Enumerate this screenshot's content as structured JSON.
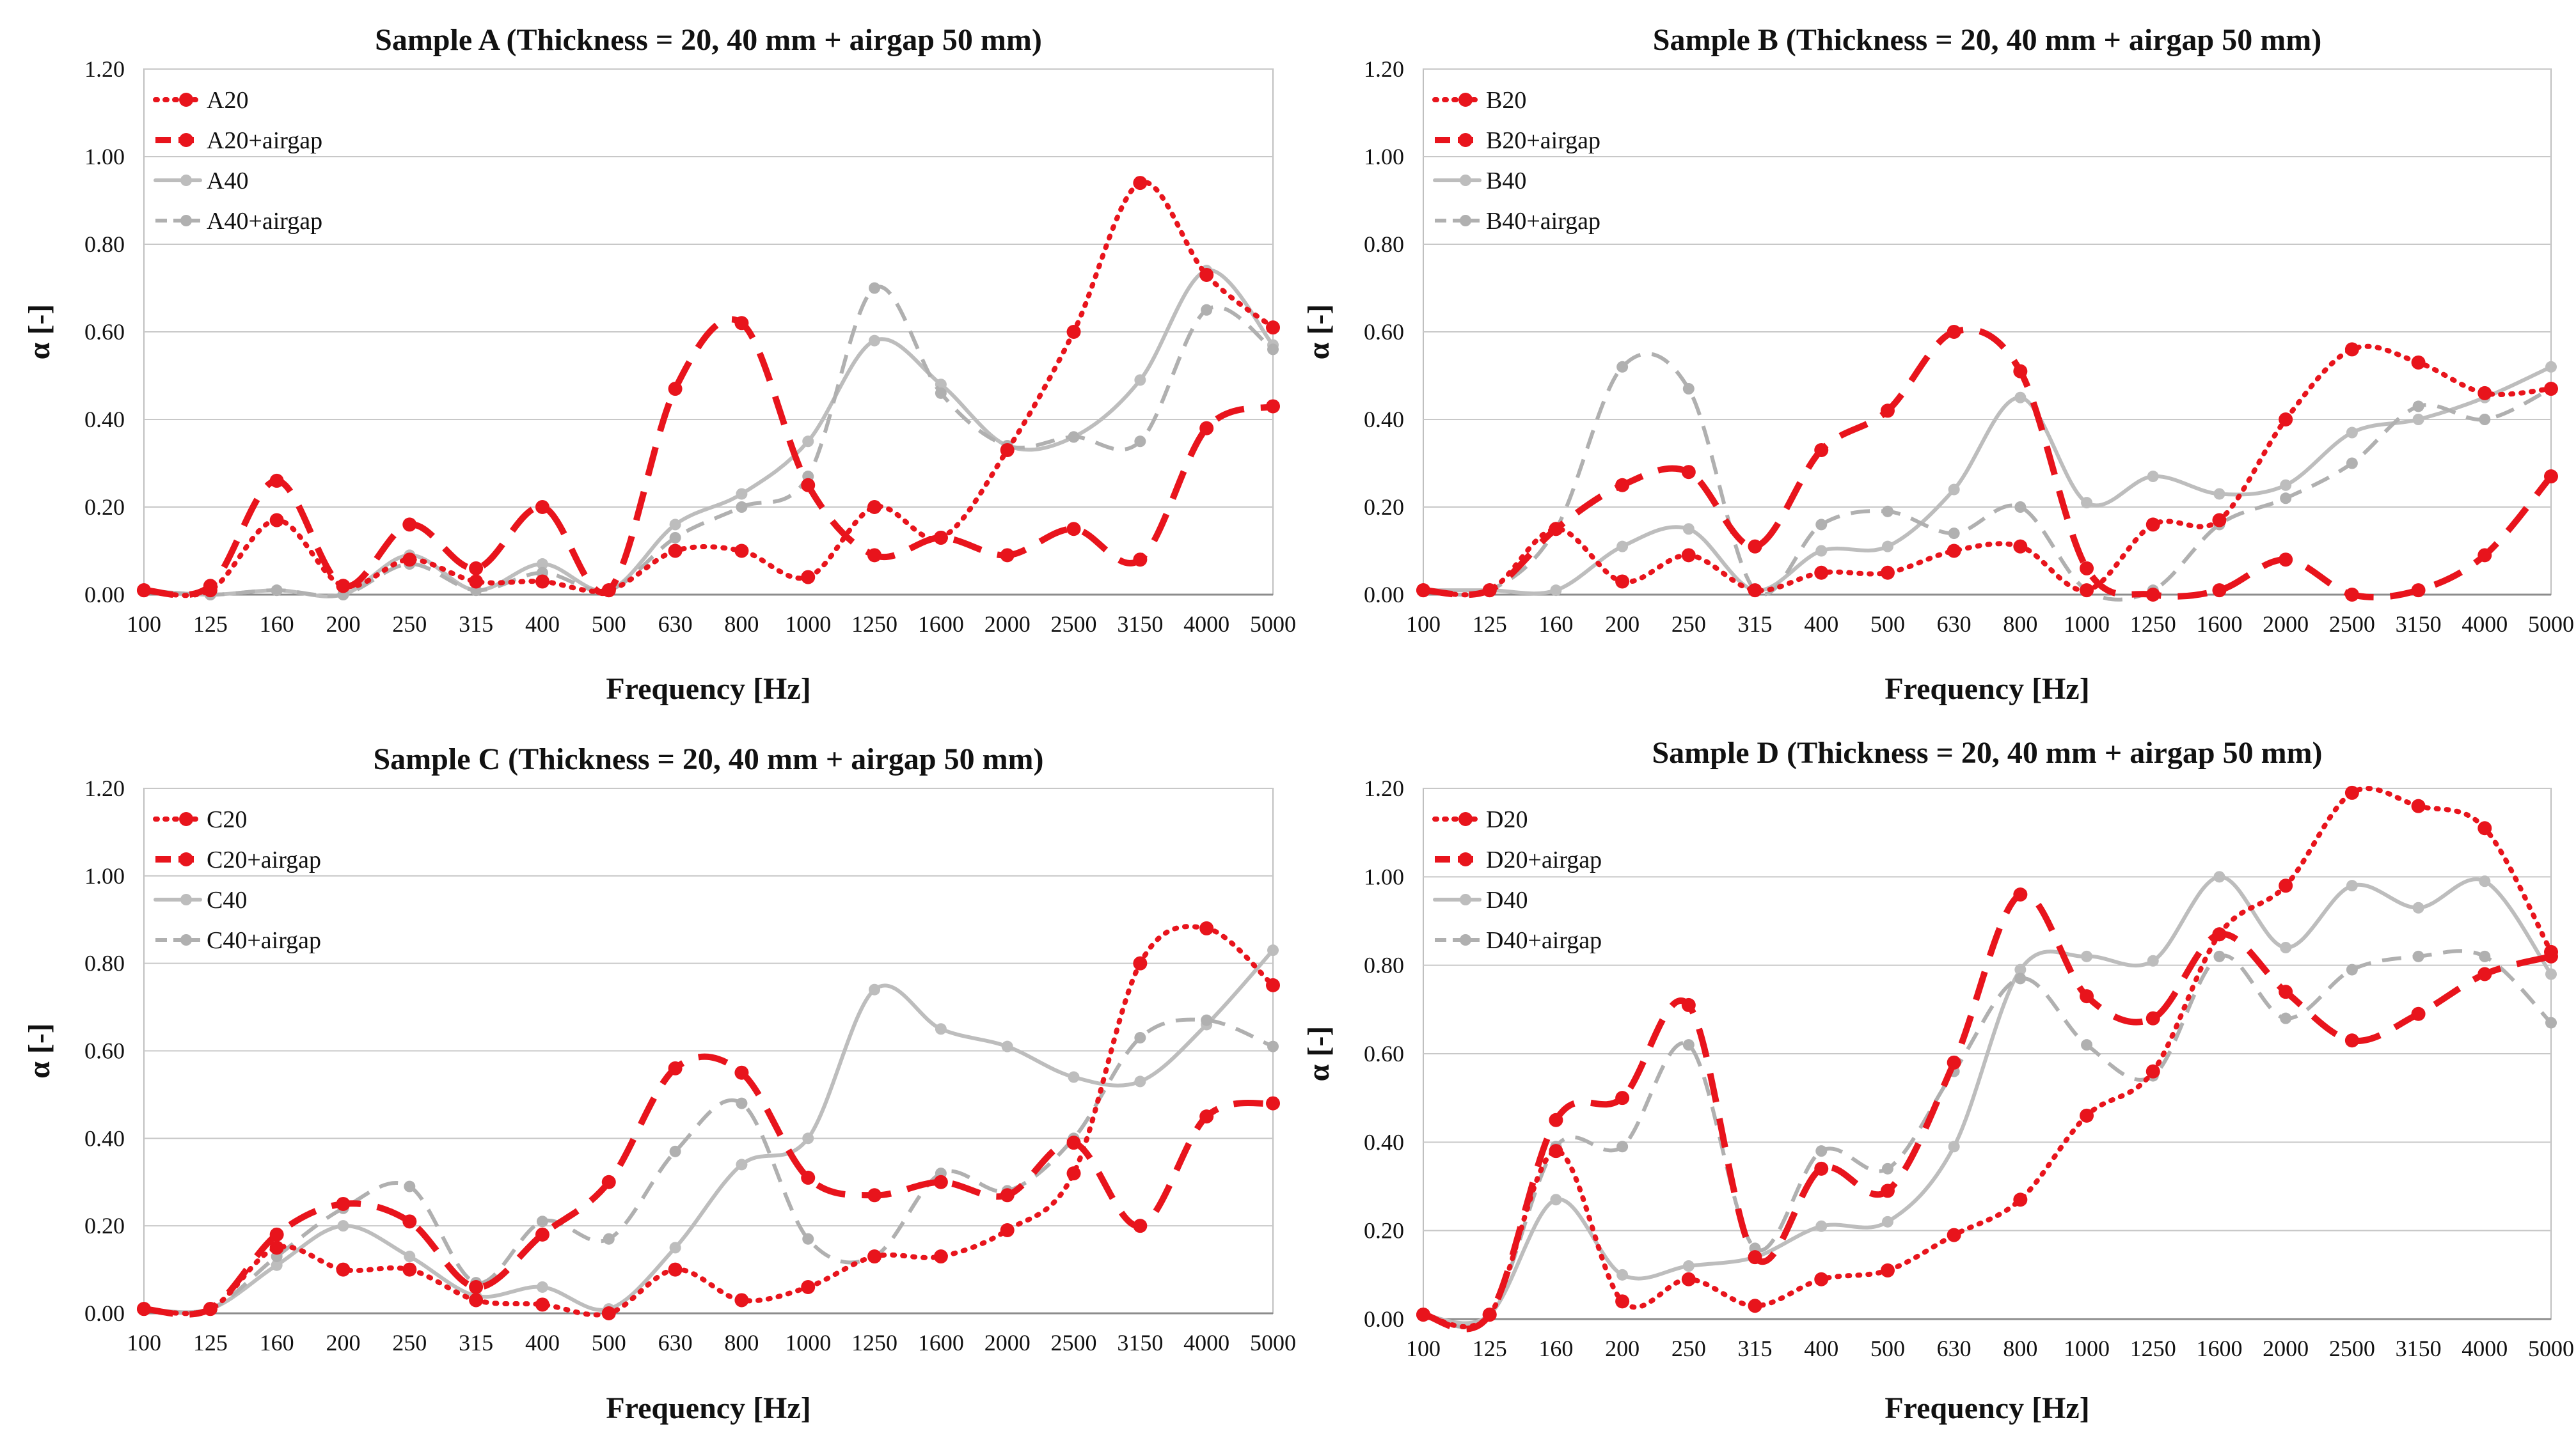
{
  "chart_data": [
    {
      "type": "line",
      "title": "Sample A (Thickness = 20, 40 mm + airgap 50 mm)",
      "xlabel": "Frequency [Hz]",
      "ylabel": "α [-]",
      "ylim": [
        0,
        1.2
      ],
      "yticks": [
        "0.00",
        "0.20",
        "0.40",
        "0.60",
        "0.80",
        "1.00",
        "1.20"
      ],
      "categories": [
        "100",
        "125",
        "160",
        "200",
        "250",
        "315",
        "400",
        "500",
        "630",
        "800",
        "1000",
        "1250",
        "1600",
        "2000",
        "2500",
        "3150",
        "4000",
        "5000"
      ],
      "series": [
        {
          "name": "A20",
          "style": "red-dotted",
          "values": [
            0.01,
            0.01,
            0.17,
            0.02,
            0.08,
            0.03,
            0.03,
            0.01,
            0.1,
            0.1,
            0.04,
            0.2,
            0.13,
            0.33,
            0.6,
            0.94,
            0.73,
            0.61
          ]
        },
        {
          "name": "A20+airgap",
          "style": "red-dashed",
          "values": [
            0.01,
            0.02,
            0.26,
            0.02,
            0.16,
            0.06,
            0.2,
            0.01,
            0.47,
            0.62,
            0.25,
            0.09,
            0.13,
            0.09,
            0.15,
            0.08,
            0.38,
            0.43
          ]
        },
        {
          "name": "A40",
          "style": "gray-solid",
          "values": [
            0.01,
            0.0,
            0.01,
            0.0,
            0.09,
            0.01,
            0.07,
            0.01,
            0.16,
            0.23,
            0.35,
            0.58,
            0.48,
            0.34,
            0.36,
            0.49,
            0.74,
            0.57
          ]
        },
        {
          "name": "A40+airgap",
          "style": "gray-dashed",
          "values": [
            0.01,
            0.0,
            0.01,
            0.0,
            0.07,
            0.01,
            0.05,
            0.01,
            0.13,
            0.2,
            0.27,
            0.7,
            0.46,
            0.34,
            0.36,
            0.35,
            0.65,
            0.56
          ]
        }
      ],
      "legend_position": "top-left"
    },
    {
      "type": "line",
      "title": "Sample B (Thickness = 20, 40 mm + airgap 50 mm)",
      "xlabel": "Frequency [Hz]",
      "ylabel": "α [-]",
      "ylim": [
        0,
        1.2
      ],
      "yticks": [
        "0.00",
        "0.20",
        "0.40",
        "0.60",
        "0.80",
        "1.00",
        "1.20"
      ],
      "categories": [
        "100",
        "125",
        "160",
        "200",
        "250",
        "315",
        "400",
        "500",
        "630",
        "800",
        "1000",
        "1250",
        "1600",
        "2000",
        "2500",
        "3150",
        "4000",
        "5000"
      ],
      "series": [
        {
          "name": "B20",
          "style": "red-dotted",
          "values": [
            0.01,
            0.01,
            0.15,
            0.03,
            0.09,
            0.01,
            0.05,
            0.05,
            0.1,
            0.11,
            0.01,
            0.16,
            0.17,
            0.4,
            0.56,
            0.53,
            0.46,
            0.47
          ]
        },
        {
          "name": "B20+airgap",
          "style": "red-dashed",
          "values": [
            0.01,
            0.01,
            0.15,
            0.25,
            0.28,
            0.11,
            0.33,
            0.42,
            0.6,
            0.51,
            0.06,
            0.0,
            0.01,
            0.08,
            0.0,
            0.01,
            0.09,
            0.27
          ]
        },
        {
          "name": "B40",
          "style": "gray-solid",
          "values": [
            0.01,
            0.01,
            0.01,
            0.11,
            0.15,
            0.01,
            0.1,
            0.11,
            0.24,
            0.45,
            0.21,
            0.27,
            0.23,
            0.25,
            0.37,
            0.4,
            0.45,
            0.52
          ]
        },
        {
          "name": "B40+airgap",
          "style": "gray-dashed",
          "values": [
            0.01,
            0.01,
            0.15,
            0.52,
            0.47,
            0.01,
            0.16,
            0.19,
            0.14,
            0.2,
            0.01,
            0.01,
            0.16,
            0.22,
            0.3,
            0.43,
            0.4,
            0.47
          ]
        }
      ],
      "legend_position": "top-left"
    },
    {
      "type": "line",
      "title": "Sample C (Thickness = 20, 40 mm + airgap 50 mm)",
      "xlabel": "Frequency [Hz]",
      "ylabel": "α [-]",
      "ylim": [
        0,
        1.2
      ],
      "yticks": [
        "0.00",
        "0.20",
        "0.40",
        "0.60",
        "0.80",
        "1.00",
        "1.20"
      ],
      "categories": [
        "100",
        "125",
        "160",
        "200",
        "250",
        "315",
        "400",
        "500",
        "630",
        "800",
        "1000",
        "1250",
        "1600",
        "2000",
        "2500",
        "3150",
        "4000",
        "5000"
      ],
      "series": [
        {
          "name": "C20",
          "style": "red-dotted",
          "values": [
            0.01,
            0.01,
            0.15,
            0.1,
            0.1,
            0.03,
            0.02,
            0.0,
            0.1,
            0.03,
            0.06,
            0.13,
            0.13,
            0.19,
            0.32,
            0.8,
            0.88,
            0.75
          ]
        },
        {
          "name": "C20+airgap",
          "style": "red-dashed",
          "values": [
            0.01,
            0.01,
            0.18,
            0.25,
            0.21,
            0.06,
            0.18,
            0.3,
            0.56,
            0.55,
            0.31,
            0.27,
            0.3,
            0.27,
            0.39,
            0.2,
            0.45,
            0.48
          ]
        },
        {
          "name": "C40",
          "style": "gray-solid",
          "values": [
            0.01,
            0.01,
            0.11,
            0.2,
            0.13,
            0.04,
            0.06,
            0.01,
            0.15,
            0.34,
            0.4,
            0.74,
            0.65,
            0.61,
            0.54,
            0.53,
            0.66,
            0.83
          ]
        },
        {
          "name": "C40+airgap",
          "style": "gray-dashed",
          "values": [
            0.01,
            0.01,
            0.13,
            0.24,
            0.29,
            0.07,
            0.21,
            0.17,
            0.37,
            0.48,
            0.17,
            0.13,
            0.32,
            0.28,
            0.4,
            0.63,
            0.67,
            0.61
          ]
        }
      ],
      "legend_position": "top-left"
    },
    {
      "type": "line",
      "title": "Sample D (Thickness = 20, 40 mm + airgap 50 mm)",
      "xlabel": "Frequency [Hz]",
      "ylabel": "α [-]",
      "ylim": [
        0,
        1.2
      ],
      "yticks": [
        "0.00",
        "0.20",
        "0.40",
        "0.60",
        "0.80",
        "1.00",
        "1.20"
      ],
      "categories": [
        "100",
        "125",
        "160",
        "200",
        "250",
        "315",
        "400",
        "500",
        "630",
        "800",
        "1000",
        "1250",
        "1600",
        "2000",
        "2500",
        "3150",
        "4000",
        "5000"
      ],
      "series": [
        {
          "name": "D20",
          "style": "red-dotted",
          "values": [
            0.01,
            0.01,
            0.38,
            0.04,
            0.09,
            0.03,
            0.09,
            0.11,
            0.19,
            0.27,
            0.46,
            0.56,
            0.87,
            0.98,
            1.19,
            1.16,
            1.11,
            0.83
          ]
        },
        {
          "name": "D20+airgap",
          "style": "red-dashed",
          "values": [
            0.01,
            0.01,
            0.45,
            0.5,
            0.71,
            0.14,
            0.34,
            0.29,
            0.58,
            0.96,
            0.73,
            0.68,
            0.87,
            0.74,
            0.63,
            0.69,
            0.78,
            0.82
          ]
        },
        {
          "name": "D40",
          "style": "gray-solid",
          "values": [
            0.01,
            0.01,
            0.27,
            0.1,
            0.12,
            0.14,
            0.21,
            0.22,
            0.39,
            0.79,
            0.82,
            0.81,
            1.0,
            0.84,
            0.98,
            0.93,
            0.99,
            0.78
          ]
        },
        {
          "name": "D40+airgap",
          "style": "gray-dashed",
          "values": [
            0.01,
            0.01,
            0.39,
            0.39,
            0.62,
            0.16,
            0.38,
            0.34,
            0.56,
            0.77,
            0.62,
            0.55,
            0.82,
            0.68,
            0.79,
            0.82,
            0.82,
            0.67
          ]
        }
      ],
      "legend_position": "top-left"
    }
  ]
}
